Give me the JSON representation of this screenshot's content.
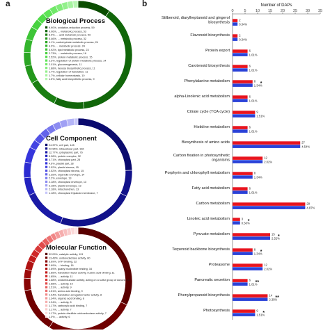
{
  "panel_labels": {
    "a": "a",
    "b": "b"
  },
  "chart_data": [
    {
      "type": "pie",
      "title": "Biological Process",
      "colors": [
        "#0a4d00",
        "#11660a",
        "#1a7f12",
        "#23971b",
        "#2ba624",
        "#34b52d",
        "#3ec537",
        "#47d23f",
        "#52dc4a",
        "#5fe357",
        "#70e868",
        "#82ec7a",
        "#93f08c",
        "#a5f39f",
        "#b6f6b1"
      ],
      "slices": [
        {
          "label": "9.90%, oxidation-reduction process, 59",
          "value": 9.9
        },
        {
          "label": "9.06%, ... metabolic process, 53",
          "value": 9.06
        },
        {
          "label": "8.9%, ... acid metabolic process, 53",
          "value": 8.9
        },
        {
          "label": "5.46%, ... metabolic process, 32",
          "value": 5.46
        },
        {
          "label": "4.1%, carbohydrate metabolic process, 24",
          "value": 4.1
        },
        {
          "label": "4.0%, ... metabolic process, 24",
          "value": 4.0
        },
        {
          "label": "3.92%, lipid metabolic process, 23",
          "value": 3.92
        },
        {
          "label": "2.73%, ... metabolic process, 16",
          "value": 2.73
        },
        {
          "label": "2.52%, protein metabolic process, 15",
          "value": 2.52
        },
        {
          "label": "2.3%, regulation of protein metabolic process, 14",
          "value": 2.3
        },
        {
          "label": "2.01%, gluconeogenesis, 11",
          "value": 2.01
        },
        {
          "label": "1.88%, hexose biosynthetic process, 11",
          "value": 1.88
        },
        {
          "label": "1.7%, regulation of translation, 11",
          "value": 1.7
        },
        {
          "label": "1.7%, cellular homeostasis, 10",
          "value": 1.7
        },
        {
          "label": "1.5%, fatty acid biosynthetic process, 9",
          "value": 1.5
        }
      ]
    },
    {
      "type": "pie",
      "title": "Cell Component",
      "colors": [
        "#0a0a6e",
        "#12128a",
        "#1a1aa6",
        "#2222bf",
        "#2b2bd1",
        "#3535dc",
        "#4343e2",
        "#5252e6",
        "#6464ea",
        "#7878ee",
        "#8c8cf1",
        "#a0a0f4",
        "#b4b4f7",
        "#c6c6fa"
      ],
      "slices": [
        {
          "label": "24.37%, cell part, 145",
          "value": 24.37
        },
        {
          "label": "22.96%, intracellular part, 136",
          "value": 22.96
        },
        {
          "label": "12.77%, cytoplasmic part, 76",
          "value": 12.77
        },
        {
          "label": "5.38%, protein complex, 32",
          "value": 5.38
        },
        {
          "label": "4.71%, chloroplast part, 28",
          "value": 4.71
        },
        {
          "label": "4.6%, plastid part, 28",
          "value": 4.6
        },
        {
          "label": "2.52%, plastid stroma, 15",
          "value": 2.52
        },
        {
          "label": "2.52%, chloroplast stroma, 15",
          "value": 2.52
        },
        {
          "label": "2.35%, organelle envelope, 14",
          "value": 2.35
        },
        {
          "label": "2.2%, envelope, 13",
          "value": 2.2
        },
        {
          "label": "2.18%, chloroplast envelope, 13",
          "value": 2.18
        },
        {
          "label": "2.18%, plastid envelope, 13",
          "value": 2.18
        },
        {
          "label": "2.18%, mitochondrion, 13",
          "value": 2.18
        },
        {
          "label": "1.18%, chloroplast thylakoid membrane, 7",
          "value": 1.18
        }
      ]
    },
    {
      "type": "pie",
      "title": "Molecular Function",
      "colors": [
        "#5a0000",
        "#700000",
        "#870404",
        "#9c0a0a",
        "#b01212",
        "#c21b1b",
        "#cf2828",
        "#d83838",
        "#e04a4a",
        "#e75e5e",
        "#ec7272",
        "#f08686",
        "#f39a9a",
        "#f6adad",
        "#f8bebe",
        "#facccc",
        "#fbd8d8",
        "#fde4e4"
      ],
      "slices": [
        {
          "label": "32.09%, catalytic activity, 191",
          "value": 32.09
        },
        {
          "label": "13.43%, oxidoreductase activity, 80",
          "value": 13.43
        },
        {
          "label": "3.69%, GTP binding, 22",
          "value": 3.69
        },
        {
          "label": "2.69%, ... binding, 16",
          "value": 2.69
        },
        {
          "label": "2.69%, guanyl nucleotide binding, 16",
          "value": 2.69
        },
        {
          "label": "1.85%, translation factor activity, nucleic acid binding, 11",
          "value": 1.85
        },
        {
          "label": "1.85%, ... activity, 11",
          "value": 1.85
        },
        {
          "label": "1.68%, oxidoreductase activity, acting on a sulfur group of donors, 10",
          "value": 1.68
        },
        {
          "label": "1.68%, ... activity, 10",
          "value": 1.68
        },
        {
          "label": "1.51%, ... activity, 9",
          "value": 1.51
        },
        {
          "label": "1.51%, amino acid binding, 9",
          "value": 1.51
        },
        {
          "label": "1.34%, translation elongation factor activity, 8",
          "value": 1.34
        },
        {
          "label": "1.34%, organic acid binding, 8",
          "value": 1.34
        },
        {
          "label": "1.34%, ... activity, 8",
          "value": 1.34
        },
        {
          "label": "1.17%, carboxylic acid binding, 7",
          "value": 1.17
        },
        {
          "label": "1.17%, ... activity, 7",
          "value": 1.17
        },
        {
          "label": "1.17%, protein disulfide oxidoreductase activity, 7",
          "value": 1.17
        },
        {
          "label": "1.0%, ... activity, 6",
          "value": 1.0
        }
      ]
    },
    {
      "type": "bar",
      "orientation": "horizontal",
      "xlabel": "Number of DAPs",
      "xlim": [
        0,
        35
      ],
      "xticks": [
        0,
        5,
        10,
        15,
        20,
        25,
        30,
        35
      ],
      "grid": false,
      "series": [
        {
          "color": "#e8141e"
        },
        {
          "color": "#2a42d8"
        }
      ],
      "categories": [
        {
          "name": "Stilbenoid, diarylheptanoid and gingerol biosynthesis",
          "red": 2,
          "blue": 2,
          "pct": "0.34%",
          "star": ""
        },
        {
          "name": "Flavonoid biosynthesis",
          "red": 2,
          "blue": 2,
          "pct": "0.34%",
          "star": ""
        },
        {
          "name": "Protein export",
          "red": 6,
          "blue": 6,
          "pct": "1.01%",
          "star": ""
        },
        {
          "name": "Carotenoid biosynthesis",
          "red": 6,
          "blue": 6,
          "pct": "1.01%",
          "star": ""
        },
        {
          "name": "Phenylalanine metabolism",
          "red": 8,
          "blue": 8,
          "pct": "1.34%",
          "star": "*"
        },
        {
          "name": "alpha-Linolenic acid metabolism",
          "red": 6,
          "blue": 6,
          "pct": "1.01%",
          "star": ""
        },
        {
          "name": "Citrate cycle (TCA cycle)",
          "red": 9,
          "blue": 9,
          "pct": "1.51%",
          "star": ""
        },
        {
          "name": "Histidine metabolism",
          "red": 6,
          "blue": 6,
          "pct": "1.01%",
          "star": ""
        },
        {
          "name": "Biosynthesis of amino acids",
          "red": 27,
          "blue": 27,
          "pct": "4.54%",
          "star": ""
        },
        {
          "name": "Carbon fixation in photosynthetic organisms",
          "red": 12,
          "blue": 12,
          "pct": "2.02%",
          "star": ""
        },
        {
          "name": "Porphyrin and chlorophyll metabolism",
          "red": 8,
          "blue": 8,
          "pct": "1.34%",
          "star": ""
        },
        {
          "name": "Fatty acid metabolism",
          "red": 6,
          "blue": 6,
          "pct": "1.01%",
          "star": ""
        },
        {
          "name": "Carbon metabolism",
          "red": 29,
          "blue": 29,
          "pct": "4.87%",
          "star": ""
        },
        {
          "name": "Linoleic acid metabolism",
          "red": 3,
          "blue": 3,
          "pct": "0.50%",
          "star": "*"
        },
        {
          "name": "Pyruvate metabolism",
          "red": 15,
          "blue": 15,
          "pct": "2.52%",
          "star": "*"
        },
        {
          "name": "Terpenoid backbone biosynthesis",
          "red": 8,
          "blue": 8,
          "pct": "1.34%",
          "star": "*"
        },
        {
          "name": "Proteasome",
          "red": 12,
          "blue": 12,
          "pct": "2.02%",
          "star": ""
        },
        {
          "name": "Pancreatic secretion",
          "red": 6,
          "blue": 6,
          "pct": "1.01%",
          "star": "**"
        },
        {
          "name": "Phenylpropanoid biosynthesis",
          "red": 14,
          "blue": 14,
          "pct": "2.35%",
          "star": "**"
        },
        {
          "name": "Photosynthesis",
          "red": 9,
          "blue": 9,
          "pct": "1.51%",
          "star": "*"
        }
      ]
    }
  ]
}
